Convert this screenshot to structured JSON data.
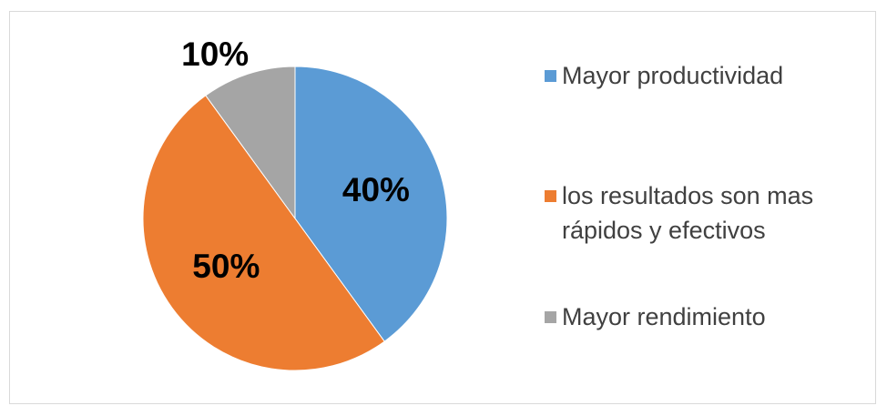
{
  "chart_data": {
    "type": "pie",
    "categories": [
      "Mayor productividad",
      "los resultados son mas rápidos y efectivos",
      "Mayor rendimiento"
    ],
    "values": [
      40,
      50,
      10
    ],
    "value_labels": [
      "40%",
      "50%",
      "10%"
    ],
    "colors": [
      "#5b9bd5",
      "#ed7d31",
      "#a5a5a5"
    ]
  }
}
